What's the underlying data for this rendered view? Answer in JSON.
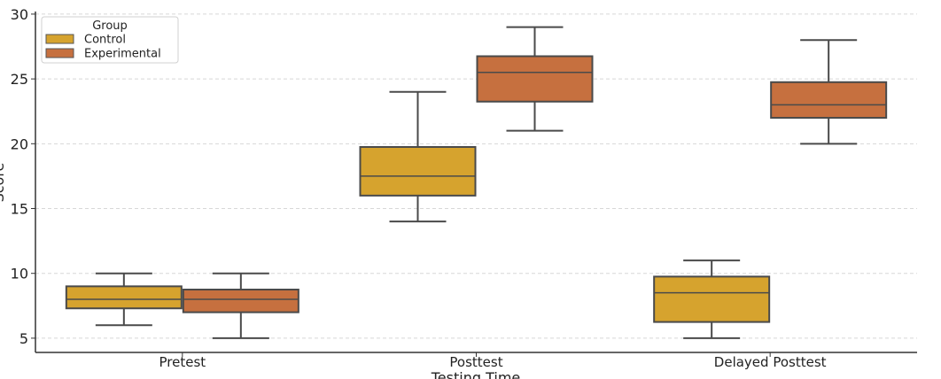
{
  "chart_data": {
    "type": "box",
    "title": "",
    "xlabel": "Testing Time",
    "ylabel": "Score",
    "ylim": [
      3.9,
      30.2
    ],
    "yticks": [
      5,
      10,
      15,
      20,
      25,
      30
    ],
    "grid": "horizontal dashed",
    "categories": [
      "Pretest",
      "Posttest",
      "Delayed Posttest"
    ],
    "legend": {
      "title": "Group",
      "placement": "top-left"
    },
    "series": [
      {
        "name": "Control",
        "color": "#d6a32e",
        "boxes": [
          {
            "min": 6,
            "q1": 7.3,
            "median": 8,
            "q3": 9,
            "max": 10
          },
          {
            "min": 14,
            "q1": 16,
            "median": 17.5,
            "q3": 19.75,
            "max": 24
          },
          {
            "min": 5,
            "q1": 6.25,
            "median": 8.5,
            "q3": 9.75,
            "max": 11
          }
        ]
      },
      {
        "name": "Experimental",
        "color": "#c6703f",
        "boxes": [
          {
            "min": 5,
            "q1": 7,
            "median": 8,
            "q3": 8.75,
            "max": 10
          },
          {
            "min": 21,
            "q1": 23.25,
            "median": 25.5,
            "q3": 26.75,
            "max": 29
          },
          {
            "min": 20,
            "q1": 22,
            "median": 23,
            "q3": 24.75,
            "max": 28
          }
        ]
      }
    ]
  }
}
